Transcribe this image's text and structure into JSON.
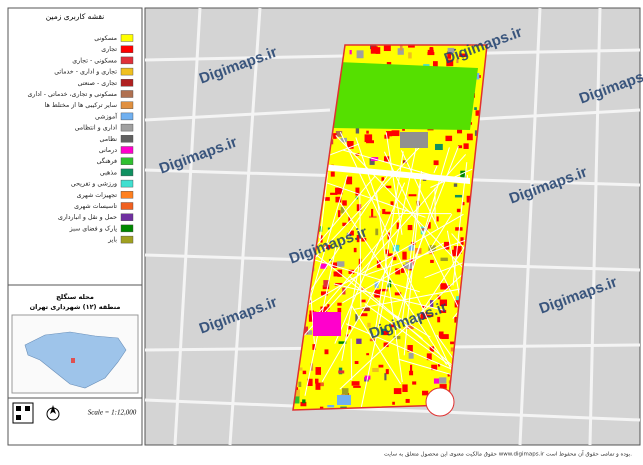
{
  "legend": {
    "title": "نقشه کاربری زمین",
    "items": [
      {
        "label": "مسکونی",
        "color": "#ffff00"
      },
      {
        "label": "تجاری",
        "color": "#ff0000"
      },
      {
        "label": "مسکونی - تجاری",
        "color": "#e0303a"
      },
      {
        "label": "تجاری و اداری - خدماتی",
        "color": "#f0c020"
      },
      {
        "label": "تجاری - صنعتی",
        "color": "#b02020"
      },
      {
        "label": "مسکونی و تجاری، خدماتی - اداری",
        "color": "#b07050"
      },
      {
        "label": "سایر ترکیبی ها از مختلط ها",
        "color": "#e09040"
      },
      {
        "label": "آموزشی",
        "color": "#70b0f0"
      },
      {
        "label": "اداری و انتظامی",
        "color": "#a0a0a0"
      },
      {
        "label": "نظامی",
        "color": "#606060"
      },
      {
        "label": "درمانی",
        "color": "#ff00cc"
      },
      {
        "label": "فرهنگی",
        "color": "#30c030"
      },
      {
        "label": "مذهبی",
        "color": "#109060"
      },
      {
        "label": "ورزشی و تفریحی",
        "color": "#40e0d0"
      },
      {
        "label": "تجهیزات شهری",
        "color": "#ff8020"
      },
      {
        "label": "تاسیسات شهری",
        "color": "#f06020"
      },
      {
        "label": "حمل و نقل و انبارداری",
        "color": "#7030a0"
      },
      {
        "label": "پارک و فضای سبز",
        "color": "#008800"
      },
      {
        "label": "بایر",
        "color": "#a0a020"
      }
    ]
  },
  "area": {
    "name": "محله سنگلج",
    "district": "منطقه (۱۲) شهرداری تهران"
  },
  "scale": "Scale = 1:12,000",
  "watermark": "Digimaps.ir",
  "footer": "حقوق مالکیت معنوی این محصول متعلق به سایت www.digimaps.ir بوده و تمامی حقوق آن محفوظ است."
}
